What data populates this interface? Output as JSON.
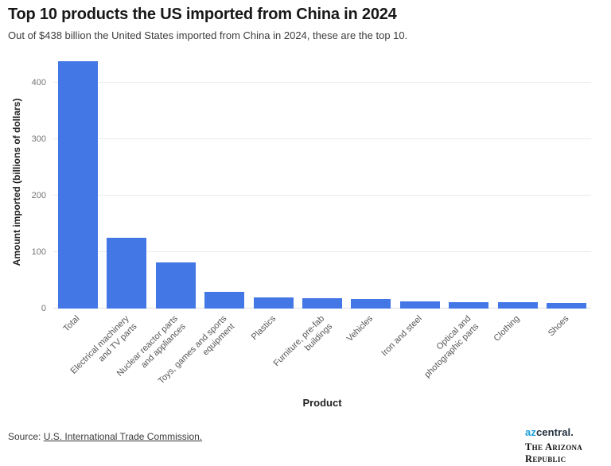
{
  "header": {
    "title": "Top 10 products the US imported from China in 2024",
    "subtitle": "Out of $438 billion the United States imported from China in 2024, these are the top 10."
  },
  "chart_data": {
    "type": "bar",
    "categories": [
      "Total",
      "Electrical machinery\nand TV parts",
      "Nuclear reactor parts\nand appliances",
      "Toys, games and sports\nequipment",
      "Plastics",
      "Furniture, pre-fab\nbuildings",
      "Vehicles",
      "Iron and steel",
      "Optical and\nphotographic parts",
      "Clothing",
      "Shoes"
    ],
    "values": [
      438,
      125,
      82,
      30,
      20,
      19,
      17,
      13,
      12,
      11,
      10
    ],
    "title": "",
    "xlabel": "Product",
    "ylabel": "Amount imported (billions of dollars)",
    "ylim": [
      0,
      440
    ],
    "yticks": [
      0,
      100,
      200,
      300,
      400
    ],
    "bar_color": "#4377e6",
    "grid": true,
    "gridline_color": "#ebebeb",
    "legend": "none"
  },
  "footer": {
    "source_prefix": "Source: ",
    "source_link": "U.S. International Trade Commission.",
    "brand_az": "az",
    "brand_central": "central.",
    "brand_bottom": "The Arizona Republic"
  }
}
